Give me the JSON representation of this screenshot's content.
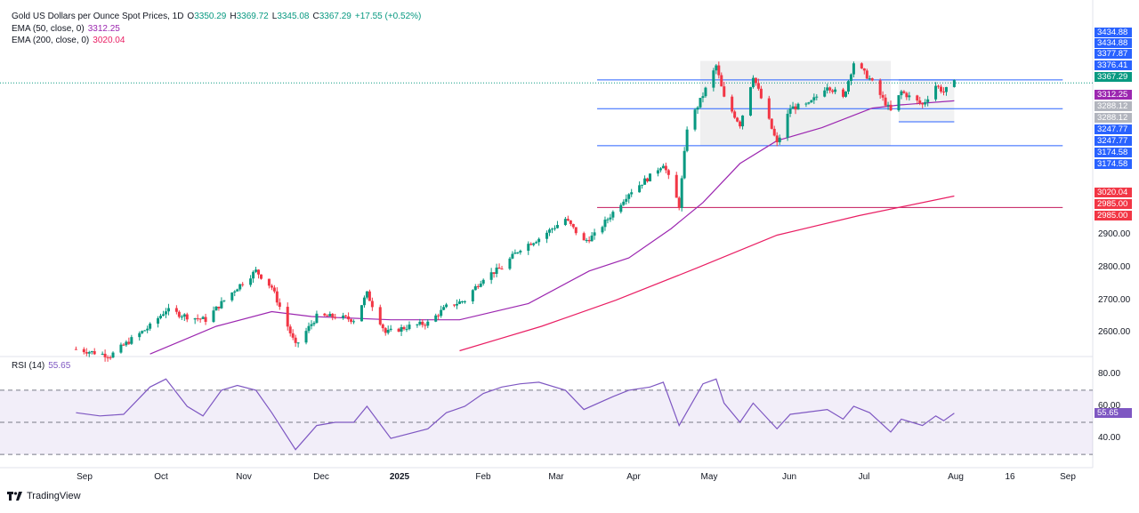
{
  "header": {
    "symbol": "Gold US Dollars per Ounce Spot Prices, 1D",
    "open_label": "O",
    "open": "3350.29",
    "high_label": "H",
    "high": "3369.72",
    "low_label": "L",
    "low": "3345.08",
    "close_label": "C",
    "close": "3367.29",
    "change": "+17.55 (+0.52%)",
    "ema50_label": "EMA (50, close, 0)",
    "ema50_value": "3312.25",
    "ema200_label": "EMA (200, close, 0)",
    "ema200_value": "3020.04",
    "rsi_label": "RSI (14)",
    "rsi_value": "55.65"
  },
  "colors": {
    "up": "#089981",
    "down": "#f23645",
    "ema50": "#9c27b0",
    "ema200": "#e91e63",
    "rsi": "#7e57c2",
    "hline": "#2962ff",
    "tag_blue": "#2962ff",
    "tag_green": "#089981",
    "tag_purple": "#9c27b0",
    "tag_red": "#f23645",
    "tag_gray": "#b2b5be"
  },
  "price_axis": {
    "ticks": [
      "2600.00",
      "2700.00",
      "2800.00",
      "2900.00"
    ],
    "tags": [
      {
        "text": "3434.88",
        "kind": "tag_blue",
        "value": 3434.88
      },
      {
        "text": "3434.88",
        "kind": "tag_blue",
        "value": 3434.88,
        "offset": 1
      },
      {
        "text": "3377.87",
        "kind": "tag_blue",
        "value": 3377.87
      },
      {
        "text": "3376.41",
        "kind": "tag_blue",
        "value": 3376.41,
        "offset": 1
      },
      {
        "text": "3367.29",
        "kind": "tag_green",
        "value": 3367.29
      },
      {
        "text": "3312.25",
        "kind": "tag_purple",
        "value": 3312.25
      },
      {
        "text": "3288.12",
        "kind": "tag_gray",
        "value": 3288.12
      },
      {
        "text": "3288.12",
        "kind": "tag_gray",
        "value": 3288.12,
        "offset": 1
      },
      {
        "text": "3247.77",
        "kind": "tag_blue",
        "value": 3247.77
      },
      {
        "text": "3247.77",
        "kind": "tag_blue",
        "value": 3247.77,
        "offset": 1
      },
      {
        "text": "3174.58",
        "kind": "tag_blue",
        "value": 3174.58
      },
      {
        "text": "3174.58",
        "kind": "tag_blue",
        "value": 3174.58,
        "offset": 1
      },
      {
        "text": "3020.04",
        "kind": "tag_red",
        "value": 3020.04
      },
      {
        "text": "2985.00",
        "kind": "tag_red",
        "value": 2985.0
      },
      {
        "text": "2985.00",
        "kind": "tag_red",
        "value": 2985.0,
        "offset": 1
      }
    ]
  },
  "rsi_axis": {
    "ticks": [
      "80.00",
      "60.00",
      "40.00"
    ]
  },
  "time_axis": {
    "labels": [
      "Sep",
      "Oct",
      "Nov",
      "Dec",
      "2025",
      "Feb",
      "Mar",
      "Apr",
      "May",
      "Jun",
      "Jul",
      "Aug",
      "16",
      "Sep"
    ]
  },
  "chart_data": {
    "type": "candlestick",
    "title": "Gold US Dollars per Ounce Spot Prices, 1D",
    "ylim": [
      2540,
      3500
    ],
    "rsi_ylim": [
      30,
      80
    ],
    "horizontal_levels": [
      3376.41,
      3288.12,
      3174.58,
      2985.0
    ],
    "range_box": {
      "from_date": "2025-04-16",
      "to_date": "2025-06-27",
      "top": 3434.88,
      "bottom": 3174.58
    },
    "inner_range": {
      "from_date": "2025-06-30",
      "to_date": "2025-07-21",
      "top": 3376.41,
      "bottom": 3247.77
    },
    "rsi_bands": [
      30,
      50,
      70
    ],
    "anchor_points": [
      [
        "2024-08-23",
        2550
      ],
      [
        "2024-09-05",
        2530
      ],
      [
        "2024-09-13",
        2580
      ],
      [
        "2024-09-20",
        2620
      ],
      [
        "2024-09-26",
        2670
      ],
      [
        "2024-10-04",
        2650
      ],
      [
        "2024-10-11",
        2640
      ],
      [
        "2024-10-18",
        2700
      ],
      [
        "2024-10-23",
        2740
      ],
      [
        "2024-10-30",
        2790
      ],
      [
        "2024-11-05",
        2740
      ],
      [
        "2024-11-08",
        2680
      ],
      [
        "2024-11-14",
        2560
      ],
      [
        "2024-11-22",
        2650
      ],
      [
        "2024-11-29",
        2650
      ],
      [
        "2024-12-06",
        2640
      ],
      [
        "2024-12-11",
        2720
      ],
      [
        "2024-12-18",
        2600
      ],
      [
        "2024-12-27",
        2620
      ],
      [
        "2025-01-03",
        2630
      ],
      [
        "2025-01-10",
        2680
      ],
      [
        "2025-01-17",
        2700
      ],
      [
        "2025-01-24",
        2770
      ],
      [
        "2025-01-31",
        2800
      ],
      [
        "2025-02-07",
        2860
      ],
      [
        "2025-02-14",
        2890
      ],
      [
        "2025-02-24",
        2950
      ],
      [
        "2025-03-03",
        2880
      ],
      [
        "2025-03-07",
        2900
      ],
      [
        "2025-03-14",
        2970
      ],
      [
        "2025-03-20",
        3030
      ],
      [
        "2025-03-28",
        3080
      ],
      [
        "2025-04-02",
        3120
      ],
      [
        "2025-04-08",
        2990
      ],
      [
        "2025-04-11",
        3230
      ],
      [
        "2025-04-17",
        3330
      ],
      [
        "2025-04-22",
        3420
      ],
      [
        "2025-04-25",
        3320
      ],
      [
        "2025-05-01",
        3240
      ],
      [
        "2025-05-06",
        3390
      ],
      [
        "2025-05-09",
        3320
      ],
      [
        "2025-05-15",
        3180
      ],
      [
        "2025-05-20",
        3290
      ],
      [
        "2025-05-27",
        3300
      ],
      [
        "2025-06-03",
        3360
      ],
      [
        "2025-06-09",
        3320
      ],
      [
        "2025-06-13",
        3430
      ],
      [
        "2025-06-19",
        3380
      ],
      [
        "2025-06-27",
        3280
      ],
      [
        "2025-07-01",
        3340
      ],
      [
        "2025-07-09",
        3300
      ],
      [
        "2025-07-14",
        3360
      ],
      [
        "2025-07-17",
        3340
      ],
      [
        "2025-07-21",
        3367.29
      ]
    ],
    "ema50_points": [
      [
        "2024-09-20",
        2535
      ],
      [
        "2024-10-15",
        2620
      ],
      [
        "2024-11-05",
        2665
      ],
      [
        "2024-11-20",
        2650
      ],
      [
        "2024-12-20",
        2640
      ],
      [
        "2025-01-15",
        2640
      ],
      [
        "2025-02-10",
        2690
      ],
      [
        "2025-03-05",
        2790
      ],
      [
        "2025-03-20",
        2830
      ],
      [
        "2025-04-05",
        2920
      ],
      [
        "2025-04-17",
        3000
      ],
      [
        "2025-05-01",
        3120
      ],
      [
        "2025-05-15",
        3190
      ],
      [
        "2025-06-01",
        3230
      ],
      [
        "2025-06-20",
        3290
      ],
      [
        "2025-07-01",
        3300
      ],
      [
        "2025-07-21",
        3312.25
      ]
    ],
    "ema200_points": [
      [
        "2025-01-15",
        2545
      ],
      [
        "2025-02-15",
        2620
      ],
      [
        "2025-03-15",
        2700
      ],
      [
        "2025-04-15",
        2800
      ],
      [
        "2025-05-15",
        2900
      ],
      [
        "2025-06-15",
        2960
      ],
      [
        "2025-07-21",
        3020.04
      ]
    ],
    "rsi_points": [
      [
        "2024-08-23",
        56
      ],
      [
        "2024-09-01",
        54
      ],
      [
        "2024-09-10",
        55
      ],
      [
        "2024-09-20",
        72
      ],
      [
        "2024-09-26",
        77
      ],
      [
        "2024-10-04",
        60
      ],
      [
        "2024-10-10",
        54
      ],
      [
        "2024-10-17",
        70
      ],
      [
        "2024-10-23",
        73
      ],
      [
        "2024-10-30",
        70
      ],
      [
        "2024-11-05",
        56
      ],
      [
        "2024-11-14",
        33
      ],
      [
        "2024-11-22",
        48
      ],
      [
        "2024-11-29",
        50
      ],
      [
        "2024-12-06",
        50
      ],
      [
        "2024-12-11",
        60
      ],
      [
        "2024-12-20",
        40
      ],
      [
        "2025-01-03",
        46
      ],
      [
        "2025-01-10",
        56
      ],
      [
        "2025-01-17",
        60
      ],
      [
        "2025-01-24",
        68
      ],
      [
        "2025-01-31",
        72
      ],
      [
        "2025-02-07",
        74
      ],
      [
        "2025-02-14",
        75
      ],
      [
        "2025-02-24",
        70
      ],
      [
        "2025-03-03",
        58
      ],
      [
        "2025-03-14",
        66
      ],
      [
        "2025-03-20",
        70
      ],
      [
        "2025-03-28",
        72
      ],
      [
        "2025-04-02",
        75
      ],
      [
        "2025-04-08",
        48
      ],
      [
        "2025-04-17",
        74
      ],
      [
        "2025-04-22",
        77
      ],
      [
        "2025-04-25",
        62
      ],
      [
        "2025-05-01",
        50
      ],
      [
        "2025-05-06",
        62
      ],
      [
        "2025-05-15",
        46
      ],
      [
        "2025-05-20",
        55
      ],
      [
        "2025-06-03",
        58
      ],
      [
        "2025-06-09",
        52
      ],
      [
        "2025-06-13",
        60
      ],
      [
        "2025-06-19",
        56
      ],
      [
        "2025-06-27",
        44
      ],
      [
        "2025-07-01",
        52
      ],
      [
        "2025-07-09",
        48
      ],
      [
        "2025-07-14",
        54
      ],
      [
        "2025-07-17",
        51
      ],
      [
        "2025-07-21",
        55.65
      ]
    ]
  },
  "brand": {
    "label": "TradingView"
  }
}
